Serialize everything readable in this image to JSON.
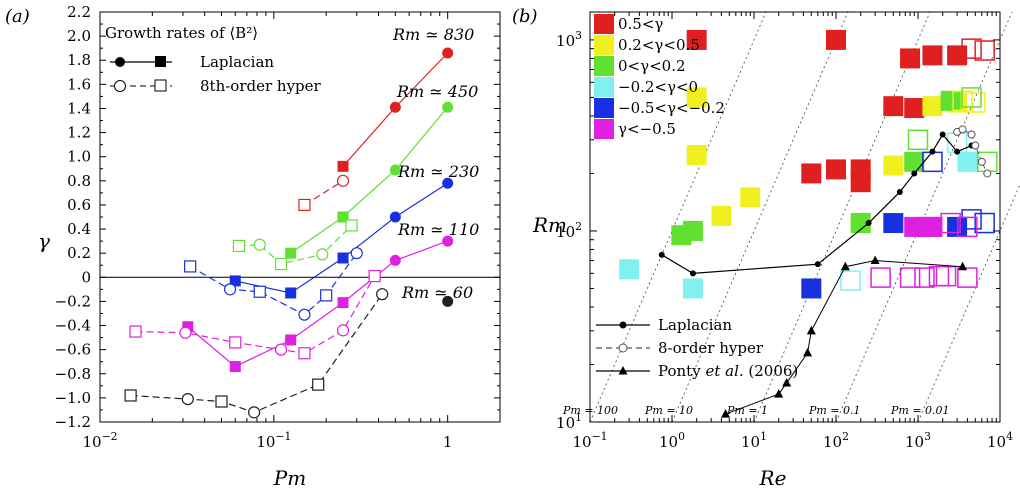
{
  "chart_data": [
    {
      "panel_label": "(a)",
      "type": "line",
      "x_scale": "log",
      "xlim": [
        0.01,
        2.0
      ],
      "ylim": [
        -1.2,
        2.2
      ],
      "xlabel": "Pm",
      "ylabel": "γ",
      "xticks": [
        {
          "value": 0.01,
          "base": "10",
          "exp": "−2"
        },
        {
          "value": 0.1,
          "base": "10",
          "exp": "−1"
        },
        {
          "value": 1,
          "base": "1",
          "exp": ""
        }
      ],
      "yticks": [
        -1.2,
        -1.0,
        -0.8,
        -0.6,
        -0.4,
        -0.2,
        0,
        0.2,
        0.4,
        0.6,
        0.8,
        1.0,
        1.2,
        1.4,
        1.6,
        1.8,
        2.0,
        2.2
      ],
      "ytick_labels": [
        "−1.2",
        "−1.0",
        "−0.8",
        "−0.6",
        "−0.4",
        "−0.2",
        "0",
        "0.2",
        "0.4",
        "0.6",
        "0.8",
        "1.0",
        "1.2",
        "1.4",
        "1.6",
        "1.8",
        "2.0",
        "2.2"
      ],
      "zero_line": true,
      "legend": {
        "title": "Growth rates of ⟨B²⟩",
        "entries": [
          {
            "label": "Laplacian",
            "style": "solid",
            "filled": true
          },
          {
            "label": "8th-order hyper",
            "style": "dashed",
            "filled": false
          }
        ]
      },
      "series": [
        {
          "rm_label": "Rm ≃ 830",
          "color": "#e02020",
          "laplacian": [
            [
              0.25,
              0.92
            ],
            [
              0.5,
              1.41
            ],
            [
              1.0,
              1.86
            ]
          ],
          "hyper": [
            [
              0.15,
              0.6
            ],
            [
              0.25,
              0.8
            ]
          ]
        },
        {
          "rm_label": "Rm ≃ 450",
          "color": "#60e030",
          "laplacian": [
            [
              0.125,
              0.2
            ],
            [
              0.25,
              0.5
            ],
            [
              0.5,
              0.89
            ],
            [
              1.0,
              1.41
            ]
          ],
          "hyper": [
            [
              0.063,
              0.26
            ],
            [
              0.083,
              0.27
            ],
            [
              0.11,
              0.11
            ],
            [
              0.19,
              0.19
            ],
            [
              0.28,
              0.43
            ]
          ]
        },
        {
          "rm_label": "Rm ≃ 230",
          "color": "#1830e0",
          "laplacian": [
            [
              0.06,
              -0.03
            ],
            [
              0.125,
              -0.13
            ],
            [
              0.25,
              0.16
            ],
            [
              0.5,
              0.5
            ],
            [
              1.0,
              0.78
            ]
          ],
          "hyper": [
            [
              0.033,
              0.09
            ],
            [
              0.056,
              -0.1
            ],
            [
              0.083,
              -0.12
            ],
            [
              0.15,
              -0.31
            ],
            [
              0.2,
              -0.15
            ],
            [
              0.3,
              0.2
            ]
          ]
        },
        {
          "rm_label": "Rm ≃ 110",
          "color": "#e020e0",
          "laplacian": [
            [
              0.032,
              -0.41
            ],
            [
              0.06,
              -0.74
            ],
            [
              0.125,
              -0.52
            ],
            [
              0.25,
              -0.21
            ],
            [
              0.5,
              0.14
            ],
            [
              1.0,
              0.3
            ]
          ],
          "hyper": [
            [
              0.016,
              -0.45
            ],
            [
              0.031,
              -0.46
            ],
            [
              0.06,
              -0.54
            ],
            [
              0.11,
              -0.6
            ],
            [
              0.15,
              -0.63
            ],
            [
              0.25,
              -0.44
            ],
            [
              0.38,
              0.01
            ]
          ]
        },
        {
          "rm_label": "Rm ≃ 60",
          "color": "#202020",
          "laplacian": [
            [
              1.0,
              -0.2
            ]
          ],
          "hyper": [
            [
              0.015,
              -0.98
            ],
            [
              0.032,
              -1.01
            ],
            [
              0.05,
              -1.03
            ],
            [
              0.077,
              -1.12
            ],
            [
              0.18,
              -0.89
            ],
            [
              0.42,
              -0.14
            ]
          ]
        }
      ]
    },
    {
      "panel_label": "(b)",
      "type": "scatter",
      "x_scale": "log",
      "y_scale": "log",
      "xlim": [
        0.1,
        10000
      ],
      "ylim": [
        10,
        1400
      ],
      "xlabel": "Re",
      "ylabel": "Rm",
      "xticks": [
        {
          "value": 0.1,
          "base": "10",
          "exp": "−1"
        },
        {
          "value": 1,
          "base": "10",
          "exp": "0"
        },
        {
          "value": 10,
          "base": "10",
          "exp": "1"
        },
        {
          "value": 100,
          "base": "10",
          "exp": "2"
        },
        {
          "value": 1000,
          "base": "10",
          "exp": "3"
        },
        {
          "value": 10000,
          "base": "10",
          "exp": "4"
        }
      ],
      "yticks": [
        {
          "value": 10,
          "base": "10",
          "exp": "1"
        },
        {
          "value": 100,
          "base": "10",
          "exp": "2"
        },
        {
          "value": 1000,
          "base": "10",
          "exp": "3"
        }
      ],
      "pm_lines": [
        {
          "label": "Pm = 100",
          "value": 100
        },
        {
          "label": "Pm = 10",
          "value": 10
        },
        {
          "label": "Pm = 1",
          "value": 1
        },
        {
          "label": "Pm = 0.1",
          "value": 0.1
        },
        {
          "label": "Pm = 0.01",
          "value": 0.01
        }
      ],
      "color_legend": [
        {
          "label": "0.5<γ",
          "color": "#e02020"
        },
        {
          "label": "0.2<γ<0.5",
          "color": "#f0f020"
        },
        {
          "label": "0<γ<0.2",
          "color": "#60e030"
        },
        {
          "label": "−0.2<γ<0",
          "color": "#80f0f0"
        },
        {
          "label": "−0.5<γ<−0.2",
          "color": "#1830e0"
        },
        {
          "label": "γ<−0.5",
          "color": "#e020e0"
        }
      ],
      "line_legend": [
        {
          "label": "Laplacian",
          "marker": "dot",
          "style": "solid"
        },
        {
          "label": "8-order hyper",
          "marker": "open-circle",
          "style": "dashed"
        },
        {
          "label": "Ponty et al. (2006)",
          "marker": "triangle",
          "style": "solid"
        }
      ],
      "filled_squares": [
        [
          2,
          1000,
          "#e02020"
        ],
        [
          100,
          1000,
          "#e02020"
        ],
        [
          800,
          800,
          "#e02020"
        ],
        [
          1500,
          830,
          "#e02020"
        ],
        [
          3000,
          830,
          "#e02020"
        ],
        [
          500,
          450,
          "#e02020"
        ],
        [
          900,
          440,
          "#e02020"
        ],
        [
          200,
          180,
          "#e02020"
        ],
        [
          50,
          200,
          "#e02020"
        ],
        [
          100,
          210,
          "#e02020"
        ],
        [
          200,
          210,
          "#e02020"
        ],
        [
          2,
          500,
          "#f0f020"
        ],
        [
          2,
          250,
          "#f0f020"
        ],
        [
          9,
          150,
          "#f0f020"
        ],
        [
          4,
          120,
          "#f0f020"
        ],
        [
          1.8,
          100,
          "#f0f020"
        ],
        [
          500,
          220,
          "#f0f020"
        ],
        [
          200,
          110,
          "#f0f020"
        ],
        [
          1500,
          450,
          "#f0f020"
        ],
        [
          3000,
          470,
          "#f0f020"
        ],
        [
          1.3,
          95,
          "#60e030"
        ],
        [
          1.8,
          100,
          "#60e030"
        ],
        [
          200,
          110,
          "#60e030"
        ],
        [
          900,
          230,
          "#60e030"
        ],
        [
          2500,
          480,
          "#60e030"
        ],
        [
          0.3,
          63,
          "#80f0f0"
        ],
        [
          1.8,
          50,
          "#80f0f0"
        ],
        [
          4000,
          230,
          "#80f0f0"
        ],
        [
          50,
          50,
          "#1830e0"
        ],
        [
          500,
          110,
          "#1830e0"
        ],
        [
          1300,
          105,
          "#1830e0"
        ],
        [
          3000,
          105,
          "#1830e0"
        ],
        [
          900,
          105,
          "#e020e0"
        ],
        [
          1500,
          105,
          "#e020e0"
        ]
      ],
      "open_squares": [
        [
          4500,
          900,
          "#e02020"
        ],
        [
          6500,
          880,
          "#e02020"
        ],
        [
          3500,
          480,
          "#f0f020"
        ],
        [
          5000,
          470,
          "#f0f020"
        ],
        [
          1000,
          300,
          "#60e030"
        ],
        [
          4500,
          500,
          "#60e030"
        ],
        [
          7000,
          230,
          "#60e030"
        ],
        [
          150,
          55,
          "#80f0f0"
        ],
        [
          3000,
          290,
          "#80f0f0"
        ],
        [
          1500,
          230,
          "#1830e0"
        ],
        [
          4500,
          115,
          "#1830e0"
        ],
        [
          6500,
          110,
          "#1830e0"
        ],
        [
          2500,
          110,
          "#e020e0"
        ],
        [
          4000,
          105,
          "#e020e0"
        ],
        [
          350,
          57,
          "#e020e0"
        ],
        [
          800,
          57,
          "#e020e0"
        ],
        [
          1200,
          57,
          "#e020e0"
        ],
        [
          1800,
          58,
          "#e020e0"
        ],
        [
          2200,
          58,
          "#e020e0"
        ],
        [
          4000,
          57,
          "#e020e0"
        ]
      ],
      "laplacian": [
        [
          0.75,
          75
        ],
        [
          1.8,
          60
        ],
        [
          60,
          67
        ],
        [
          250,
          110
        ],
        [
          600,
          160
        ],
        [
          900,
          200
        ],
        [
          1500,
          260
        ],
        [
          2000,
          320
        ],
        [
          3000,
          260
        ],
        [
          4500,
          280
        ]
      ],
      "hyper": [
        [
          3000,
          330
        ],
        [
          3500,
          340
        ],
        [
          4500,
          320
        ],
        [
          5000,
          280
        ],
        [
          6000,
          230
        ],
        [
          7000,
          200
        ]
      ],
      "ponty": [
        [
          4.5,
          11
        ],
        [
          20,
          14
        ],
        [
          25,
          16
        ],
        [
          45,
          23
        ],
        [
          50,
          30
        ],
        [
          130,
          65
        ],
        [
          300,
          70
        ],
        [
          3500,
          65
        ]
      ]
    }
  ],
  "rm_labels": [
    "Rm ≃ 830",
    "Rm ≃ 450",
    "Rm ≃ 230",
    "Rm ≃ 110",
    "Rm ≃ 60"
  ]
}
